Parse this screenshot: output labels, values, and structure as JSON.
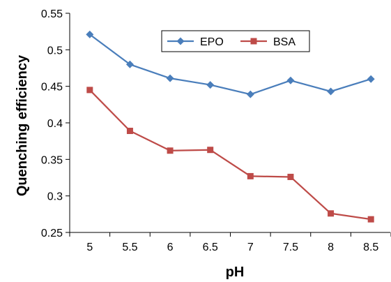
{
  "chart_data": {
    "type": "line",
    "title": "",
    "xlabel": "pH",
    "ylabel": "Quenching efficiency",
    "x": [
      5,
      5.5,
      6,
      6.5,
      7,
      7.5,
      8,
      8.5
    ],
    "x_tick_labels": [
      "5",
      "5.5",
      "6",
      "6.5",
      "7",
      "7.5",
      "8",
      "8.5"
    ],
    "y_tick_labels": [
      "0.25",
      "0.3",
      "0.35",
      "0.4",
      "0.45",
      "0.5",
      "0.55"
    ],
    "ylim": [
      0.25,
      0.55
    ],
    "grid": false,
    "legend_position": "top-center",
    "series": [
      {
        "name": "EPO",
        "color": "#4A7EBB",
        "marker": "diamond",
        "values": [
          0.521,
          0.48,
          0.461,
          0.452,
          0.439,
          0.458,
          0.443,
          0.46
        ]
      },
      {
        "name": "BSA",
        "color": "#BE4B48",
        "marker": "square",
        "values": [
          0.445,
          0.389,
          0.362,
          0.363,
          0.327,
          0.326,
          0.276,
          0.268
        ]
      }
    ]
  }
}
